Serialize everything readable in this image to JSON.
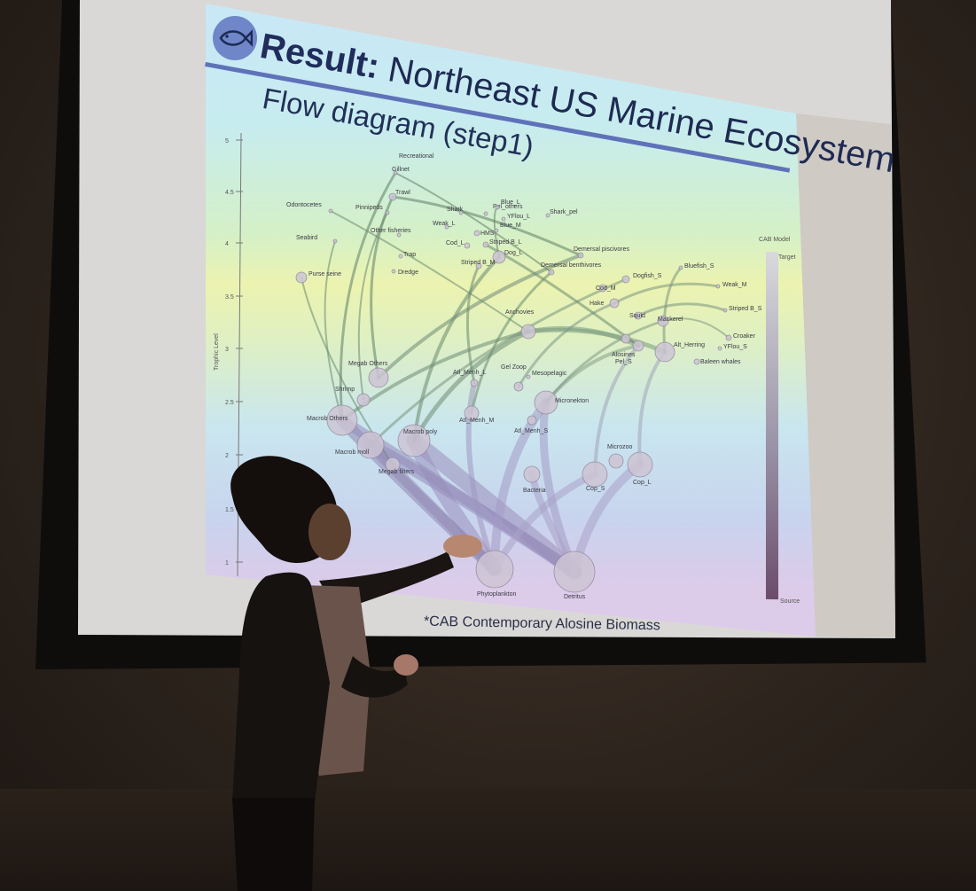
{
  "slide": {
    "title_bold": "Result:",
    "title_rest": "Northeast US Marine Ecosystem",
    "subtitle": "Flow diagram (step1)",
    "footnote": "*CAB Contemporary Alosine Biomass",
    "logo_icon": "fish-icon",
    "accent_color": "#5f72b9"
  },
  "plot": {
    "y_axis_label": "Trophic Level",
    "y_ticks": [
      "5",
      "4.5",
      "4",
      "3.5",
      "3",
      "2.5",
      "2",
      "1.5",
      "1"
    ],
    "legend_title": "CAB Model",
    "legend_top": "Target",
    "legend_bottom": "Source",
    "nodes": [
      {
        "label": "Recreational"
      },
      {
        "label": "Gillnet"
      },
      {
        "label": "Trawl"
      },
      {
        "label": "Odontocetes"
      },
      {
        "label": "Pinnipeds"
      },
      {
        "label": "Seabird"
      },
      {
        "label": "Other fisheries"
      },
      {
        "label": "Trap"
      },
      {
        "label": "Dredge"
      },
      {
        "label": "Purse seine"
      },
      {
        "label": "Shark"
      },
      {
        "label": "Pel_others"
      },
      {
        "label": "Blue_L"
      },
      {
        "label": "YFlou_L"
      },
      {
        "label": "Blue_M"
      },
      {
        "label": "HMS"
      },
      {
        "label": "Weak_L"
      },
      {
        "label": "Cod_L"
      },
      {
        "label": "Striped B_L"
      },
      {
        "label": "Dog_L"
      },
      {
        "label": "Striped B_M"
      },
      {
        "label": "Shark_pel"
      },
      {
        "label": "Demersal piscivores"
      },
      {
        "label": "Demersal benthivores"
      },
      {
        "label": "Dogfish_S"
      },
      {
        "label": "Cod_M"
      },
      {
        "label": "Bluefish_S"
      },
      {
        "label": "Weak_M"
      },
      {
        "label": "Striped B_S"
      },
      {
        "label": "Hake"
      },
      {
        "label": "Squid"
      },
      {
        "label": "Mackerel"
      },
      {
        "label": "Croaker"
      },
      {
        "label": "YFlou_S"
      },
      {
        "label": "Baleen whales"
      },
      {
        "label": "Alt_Herring"
      },
      {
        "label": "Alosines"
      },
      {
        "label": "Pel_S"
      },
      {
        "label": "Anchovies"
      },
      {
        "label": "Megab Others"
      },
      {
        "label": "Shrimp"
      },
      {
        "label": "Macrob Others"
      },
      {
        "label": "Macrob moll"
      },
      {
        "label": "Macrob poly"
      },
      {
        "label": "Megab filters"
      },
      {
        "label": "Gel Zoop"
      },
      {
        "label": "Mesopelagic"
      },
      {
        "label": "Atl_Menh_L"
      },
      {
        "label": "Atl_Menh_M"
      },
      {
        "label": "Atl_Menh_S"
      },
      {
        "label": "Micronekton"
      },
      {
        "label": "Microzoo"
      },
      {
        "label": "Bacteria"
      },
      {
        "label": "Cop_S"
      },
      {
        "label": "Cop_L"
      },
      {
        "label": "Phytoplankton"
      },
      {
        "label": "Detritus"
      }
    ]
  }
}
